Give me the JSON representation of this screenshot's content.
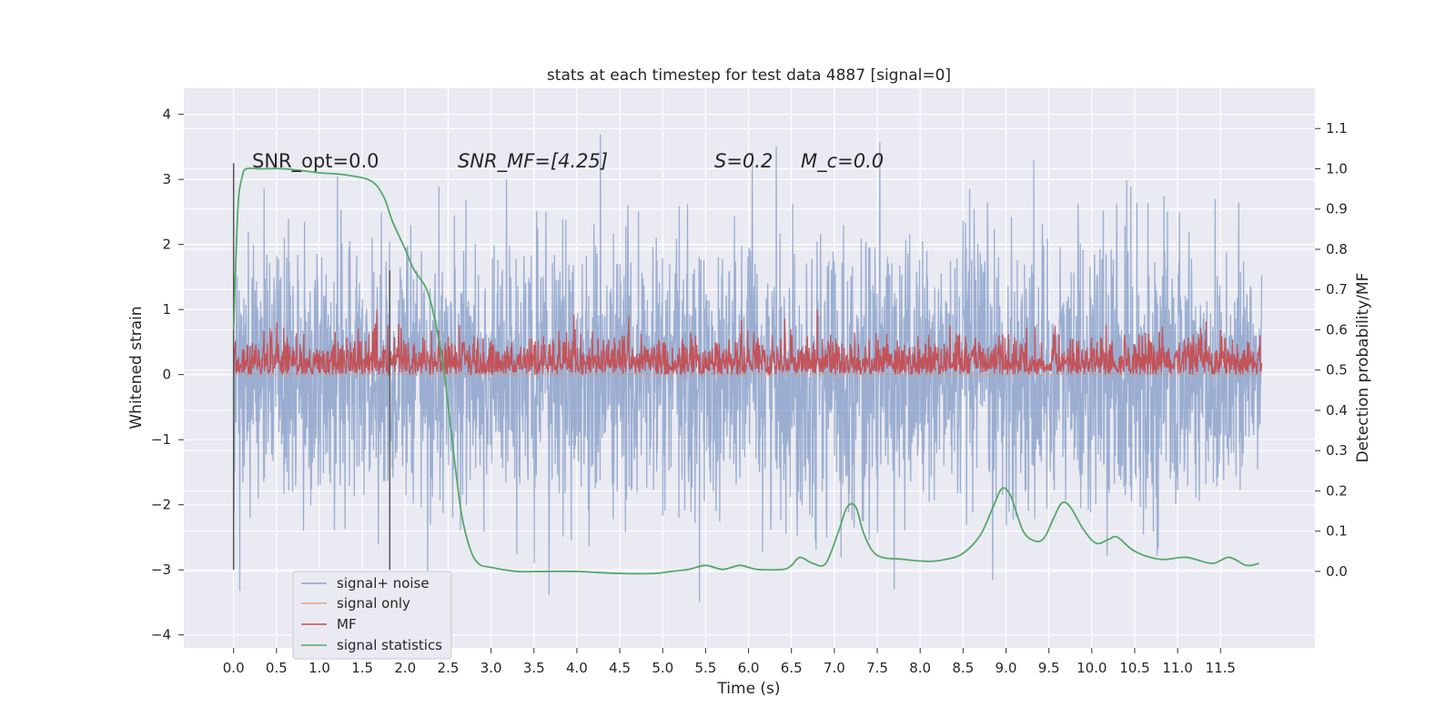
{
  "chart_data": {
    "type": "line",
    "title": "stats at each timestep for test data 4887 [signal=0]",
    "xlabel": "Time (s)",
    "ylabel": "Whitened strain",
    "ylabel_right": "Detection probability/MF",
    "xlim": [
      -0.58,
      12.6
    ],
    "ylim": [
      -4.2,
      4.4
    ],
    "ylim_right": [
      -0.19,
      1.2
    ],
    "x_ticks": [
      0.0,
      0.5,
      1.0,
      1.5,
      2.0,
      2.5,
      3.0,
      3.5,
      4.0,
      4.5,
      5.0,
      5.5,
      6.0,
      6.5,
      7.0,
      7.5,
      8.0,
      8.5,
      9.0,
      9.5,
      10.0,
      10.5,
      11.0,
      11.5
    ],
    "x_tick_labels": [
      "0.0",
      "0.5",
      "1.0",
      "1.5",
      "2.0",
      "2.5",
      "3.0",
      "3.5",
      "4.0",
      "4.5",
      "5.0",
      "5.5",
      "6.0",
      "6.5",
      "7.0",
      "7.5",
      "8.0",
      "8.5",
      "9.0",
      "9.5",
      "10.0",
      "10.5",
      "11.0",
      "11.5"
    ],
    "y_ticks": [
      4,
      3,
      2,
      1,
      0,
      -1,
      -2,
      -3,
      -4
    ],
    "y_tick_labels": [
      "4",
      "3",
      "2",
      "1",
      "0",
      "−1",
      "−2",
      "−3",
      "−4"
    ],
    "y_right_ticks": [
      1.1,
      1.0,
      0.9,
      0.8,
      0.7,
      0.6,
      0.5,
      0.4,
      0.3,
      0.2,
      0.1,
      0.0
    ],
    "y_right_tick_labels": [
      "1.1",
      "1.0",
      "0.9",
      "0.8",
      "0.7",
      "0.6",
      "0.5",
      "0.4",
      "0.3",
      "0.2",
      "0.1",
      "0.0"
    ],
    "grid": true,
    "legend_position": "lower-left",
    "time_range": [
      0.0,
      11.98
    ],
    "series": [
      {
        "name": "signal+ noise",
        "color": "#4c72b0",
        "axis": "left",
        "kind": "noise",
        "typical_range": [
          -1.5,
          1.5
        ],
        "peak_range": [
          -3.8,
          4.1
        ]
      },
      {
        "name": "signal only",
        "color": "#dd8452",
        "axis": "left",
        "kind": "flat",
        "values": []
      },
      {
        "name": "MF",
        "color": "#c44e52",
        "axis": "left",
        "kind": "noise",
        "typical_range": [
          0.0,
          0.6
        ],
        "peak_range": [
          0.0,
          1.0
        ]
      },
      {
        "name": "signal statistics",
        "color": "#55a868",
        "axis": "right",
        "x": [
          0.0,
          0.05,
          0.1,
          0.15,
          0.3,
          0.6,
          1.0,
          1.3,
          1.6,
          1.75,
          1.85,
          2.0,
          2.1,
          2.25,
          2.35,
          2.45,
          2.55,
          2.65,
          2.75,
          2.85,
          3.0,
          3.3,
          3.6,
          4.0,
          4.5,
          4.9,
          5.1,
          5.3,
          5.5,
          5.7,
          5.9,
          6.1,
          6.4,
          6.5,
          6.6,
          6.75,
          6.9,
          7.05,
          7.15,
          7.25,
          7.35,
          7.5,
          7.8,
          8.1,
          8.3,
          8.5,
          8.7,
          8.85,
          8.95,
          9.05,
          9.2,
          9.35,
          9.45,
          9.55,
          9.65,
          9.75,
          9.9,
          10.05,
          10.2,
          10.3,
          10.5,
          10.8,
          11.1,
          11.4,
          11.6,
          11.8,
          11.95
        ],
        "values": [
          0.6,
          0.9,
          0.98,
          1.0,
          1.0,
          1.0,
          0.99,
          0.985,
          0.97,
          0.93,
          0.87,
          0.8,
          0.75,
          0.7,
          0.62,
          0.5,
          0.32,
          0.15,
          0.06,
          0.02,
          0.01,
          0.0,
          0.0,
          0.0,
          -0.005,
          -0.005,
          0.0,
          0.005,
          0.015,
          0.005,
          0.015,
          0.005,
          0.005,
          0.015,
          0.035,
          0.02,
          0.02,
          0.1,
          0.16,
          0.16,
          0.09,
          0.04,
          0.03,
          0.025,
          0.03,
          0.045,
          0.09,
          0.16,
          0.205,
          0.19,
          0.1,
          0.075,
          0.085,
          0.13,
          0.17,
          0.16,
          0.105,
          0.07,
          0.08,
          0.085,
          0.05,
          0.03,
          0.035,
          0.02,
          0.035,
          0.015,
          0.02
        ]
      }
    ],
    "vertical_lines": [
      {
        "x": 0.0,
        "y_from": -3.0,
        "y_to": 3.25
      },
      {
        "x": 1.82,
        "y_from": -3.0,
        "y_to": 1.6
      }
    ],
    "annotations": [
      {
        "text": "SNR_opt=0.0",
        "x": 0.2,
        "y": 3.3
      },
      {
        "text": "SNR_MF=[4.25]",
        "x": 2.6,
        "y": 3.3
      },
      {
        "text": "S=0.2",
        "x": 5.6,
        "y": 3.3
      },
      {
        "text": "M_c=0.0",
        "x": 6.6,
        "y": 3.3
      }
    ]
  }
}
